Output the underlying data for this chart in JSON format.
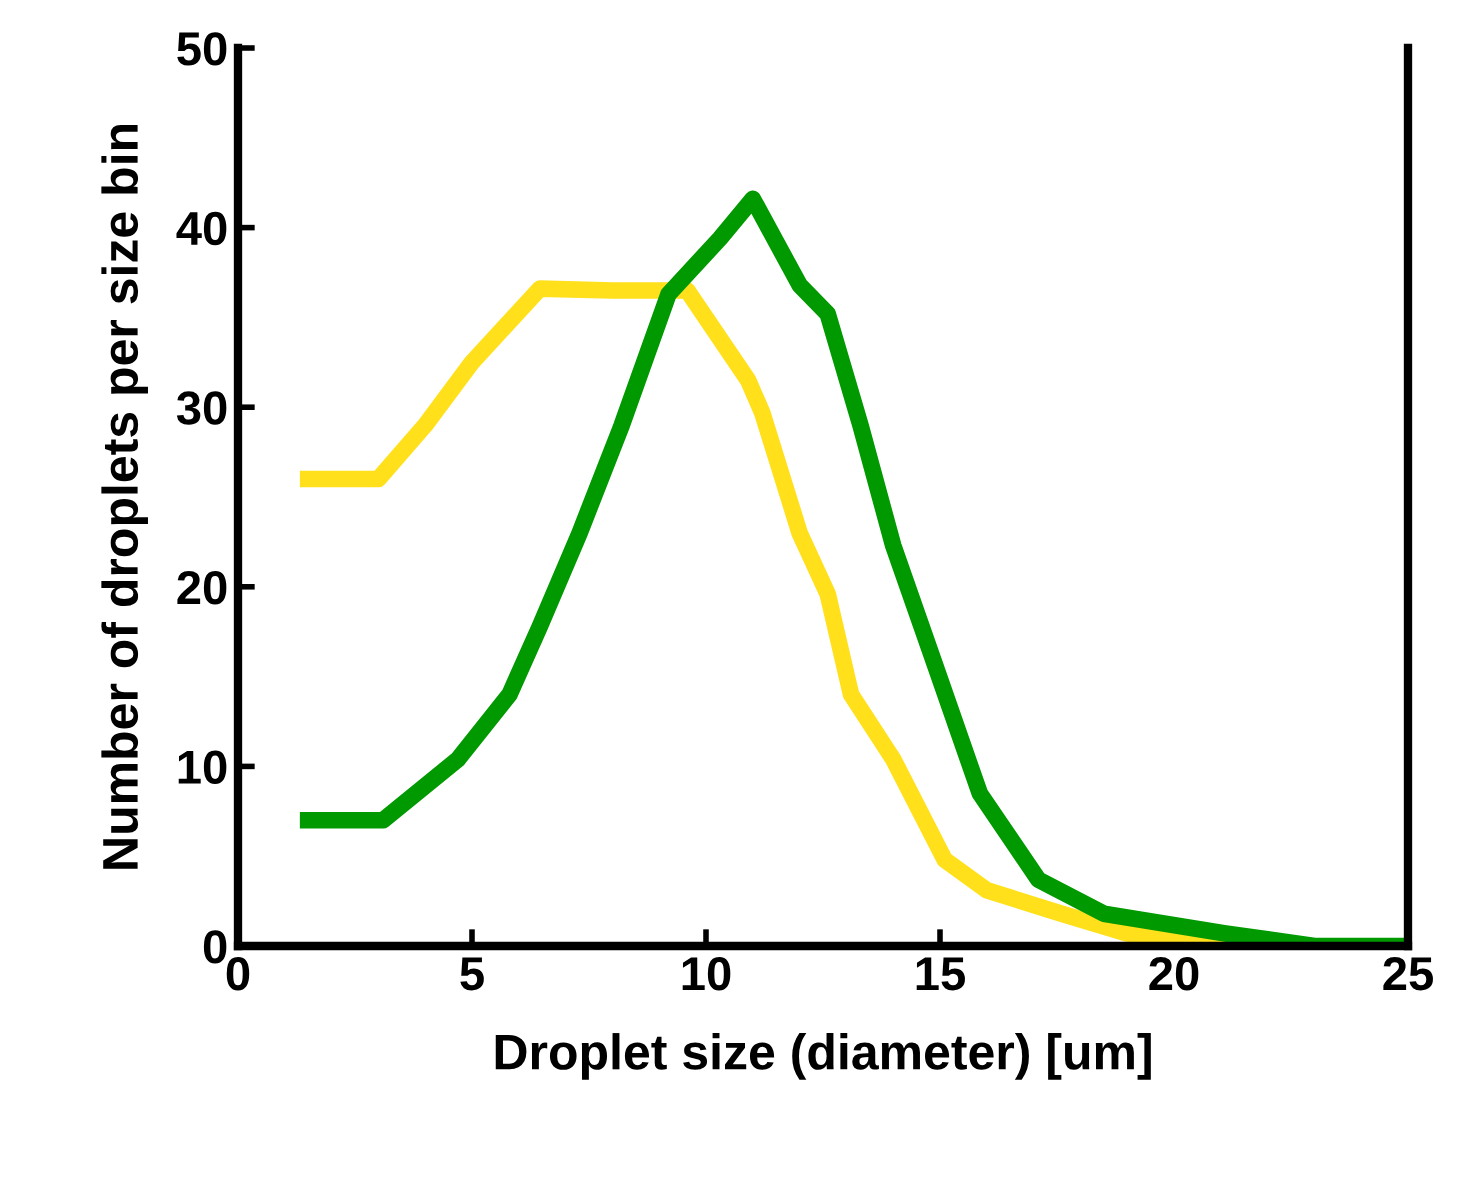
{
  "chart_data": {
    "type": "line",
    "xlabel": "Droplet size (diameter) [um]",
    "ylabel": "Number of droplets per size bin",
    "xlim": [
      0,
      25
    ],
    "xticks": [
      0,
      5,
      10,
      15,
      20,
      25
    ],
    "ylim": [
      0,
      50
    ],
    "yticks": [
      0,
      10,
      20,
      30,
      40,
      50
    ],
    "grid": false,
    "legend": false,
    "marker": "none",
    "line_style": "solid",
    "series": [
      {
        "color": "#ffe01a",
        "x": [
          1.5,
          3.0,
          4.0,
          5.0,
          6.45,
          8.0,
          9.6,
          10.9,
          11.2,
          12.0,
          12.6,
          13.1,
          14.0,
          15.1,
          16.0,
          17.6,
          19.0,
          21.4
        ],
        "values": [
          26,
          26,
          29,
          32.5,
          36.6,
          36.5,
          36.5,
          31.5,
          29.7,
          23,
          19.6,
          14,
          10.4,
          4.8,
          3.1,
          1.8,
          0.7,
          0
        ]
      },
      {
        "color": "#009900",
        "x": [
          1.5,
          3.1,
          4.7,
          5.8,
          6.45,
          7.3,
          8.2,
          9.2,
          10.3,
          11.0,
          12.0,
          12.6,
          13.3,
          14.0,
          14.9,
          15.85,
          17.1,
          18.5,
          21.1,
          23.0,
          25.0
        ],
        "values": [
          7,
          7,
          10.4,
          14,
          17.8,
          23,
          29,
          36.3,
          39.4,
          41.6,
          36.8,
          35.2,
          29,
          22.3,
          15.6,
          8.5,
          3.7,
          1.8,
          0.7,
          0,
          0
        ]
      }
    ]
  }
}
